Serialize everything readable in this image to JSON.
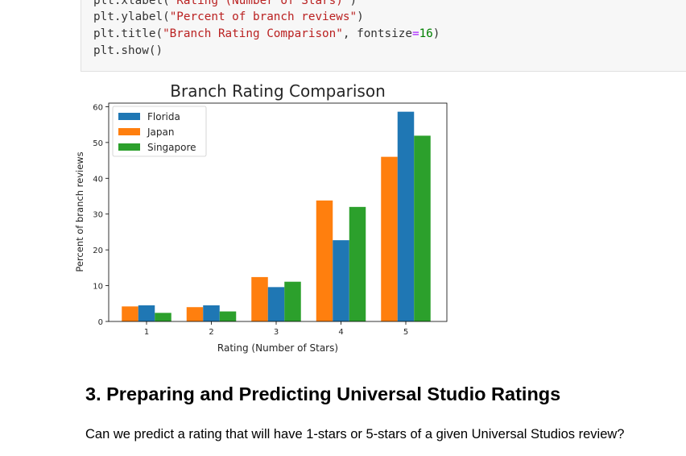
{
  "code_cell": {
    "lines": [
      [
        {
          "t": "plt.xlabel(",
          "c": "kw"
        },
        {
          "t": "\"Rating (Number of Stars)\"",
          "c": "str"
        },
        {
          "t": ")",
          "c": "kw"
        }
      ],
      [
        {
          "t": "plt.ylabel(",
          "c": "kw"
        },
        {
          "t": "\"Percent of branch reviews\"",
          "c": "str"
        },
        {
          "t": ")",
          "c": "kw"
        }
      ],
      [
        {
          "t": "plt.title(",
          "c": "kw"
        },
        {
          "t": "\"Branch Rating Comparison\"",
          "c": "str"
        },
        {
          "t": ", fontsize",
          "c": "kw"
        },
        {
          "t": "=",
          "c": "op"
        },
        {
          "t": "16",
          "c": "num"
        },
        {
          "t": ")",
          "c": "kw"
        }
      ],
      [
        {
          "t": "plt.show()",
          "c": "kw"
        }
      ]
    ]
  },
  "chart_data": {
    "type": "bar",
    "title": "Branch Rating Comparison",
    "xlabel": "Rating (Number of Stars)",
    "ylabel": "Percent of branch reviews",
    "categories": [
      "1",
      "2",
      "3",
      "4",
      "5"
    ],
    "ylim": [
      0,
      61
    ],
    "yticks": [
      0,
      10,
      20,
      30,
      40,
      50,
      60
    ],
    "legend_position": "top-left",
    "series": [
      {
        "name": "Japan",
        "color": "#ff7f0e",
        "values": [
          4.2,
          4.0,
          12.4,
          33.8,
          46.0
        ]
      },
      {
        "name": "Florida",
        "color": "#1f77b4",
        "values": [
          4.5,
          4.5,
          9.6,
          22.7,
          58.6
        ]
      },
      {
        "name": "Singapore",
        "color": "#2ca02c",
        "values": [
          2.4,
          2.8,
          11.1,
          32.0,
          51.9
        ]
      }
    ],
    "legend_order": [
      "Florida",
      "Japan",
      "Singapore"
    ]
  },
  "markdown": {
    "heading": "3. Preparing and Predicting Universal Studio Ratings",
    "paragraph": "Can we predict a rating that will have 1-stars or 5-stars of a given Universal Studios review?"
  }
}
